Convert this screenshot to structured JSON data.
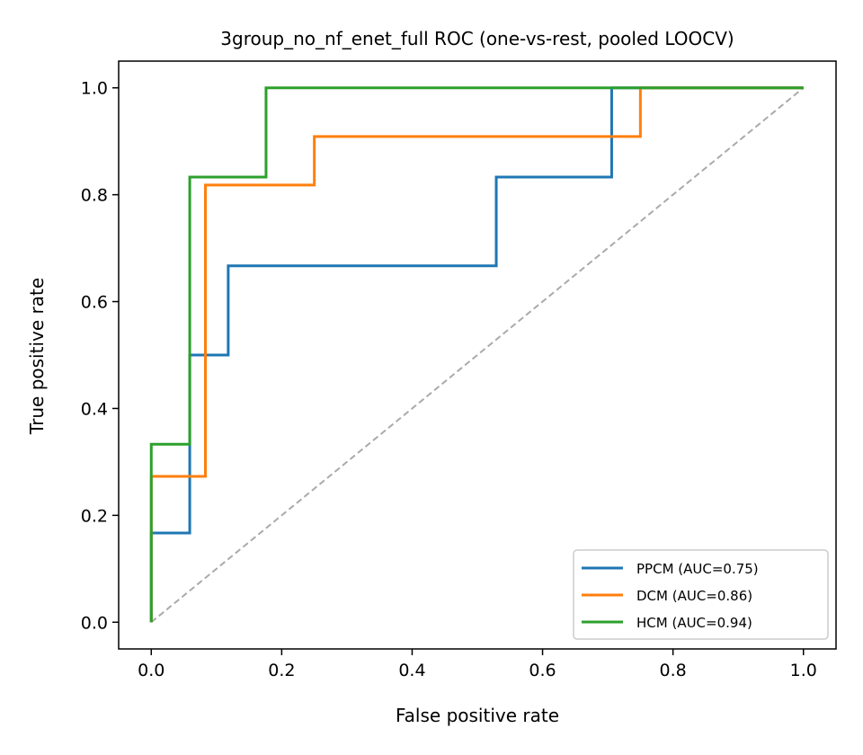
{
  "chart_data": {
    "type": "line",
    "title": "3group_no_nf_enet_full ROC (one-vs-rest, pooled LOOCV)",
    "xlabel": "False positive rate",
    "ylabel": "True positive rate",
    "xlim": [
      -0.05,
      1.05
    ],
    "ylim": [
      -0.05,
      1.05
    ],
    "xticks": [
      0.0,
      0.2,
      0.4,
      0.6,
      0.8,
      1.0
    ],
    "yticks": [
      0.0,
      0.2,
      0.4,
      0.6,
      0.8,
      1.0
    ],
    "xtick_labels": [
      "0.0",
      "0.2",
      "0.4",
      "0.6",
      "0.8",
      "1.0"
    ],
    "ytick_labels": [
      "0.0",
      "0.2",
      "0.4",
      "0.6",
      "0.8",
      "1.0"
    ],
    "grid": false,
    "legend_position": "lower-right",
    "diagonal": {
      "x": [
        0,
        1
      ],
      "y": [
        0,
        1
      ],
      "color": "#aaaaaa",
      "style": "dashed"
    },
    "series": [
      {
        "name": "PPCM (AUC=0.75)",
        "color": "#1f77b4",
        "x": [
          0,
          0,
          0.059,
          0.059,
          0.118,
          0.118,
          0.529,
          0.529,
          0.706,
          0.706,
          1.0
        ],
        "y": [
          0,
          0.167,
          0.167,
          0.5,
          0.5,
          0.667,
          0.667,
          0.833,
          0.833,
          1.0,
          1.0
        ]
      },
      {
        "name": "DCM (AUC=0.86)",
        "color": "#ff7f0e",
        "x": [
          0,
          0,
          0.083,
          0.083,
          0.25,
          0.25,
          0.75,
          0.75,
          1.0
        ],
        "y": [
          0,
          0.273,
          0.273,
          0.818,
          0.818,
          0.909,
          0.909,
          1.0,
          1.0
        ]
      },
      {
        "name": "HCM (AUC=0.94)",
        "color": "#2ca02c",
        "x": [
          0,
          0,
          0.059,
          0.059,
          0.176,
          0.176,
          1.0
        ],
        "y": [
          0,
          0.333,
          0.333,
          0.833,
          0.833,
          1.0,
          1.0
        ]
      }
    ]
  }
}
